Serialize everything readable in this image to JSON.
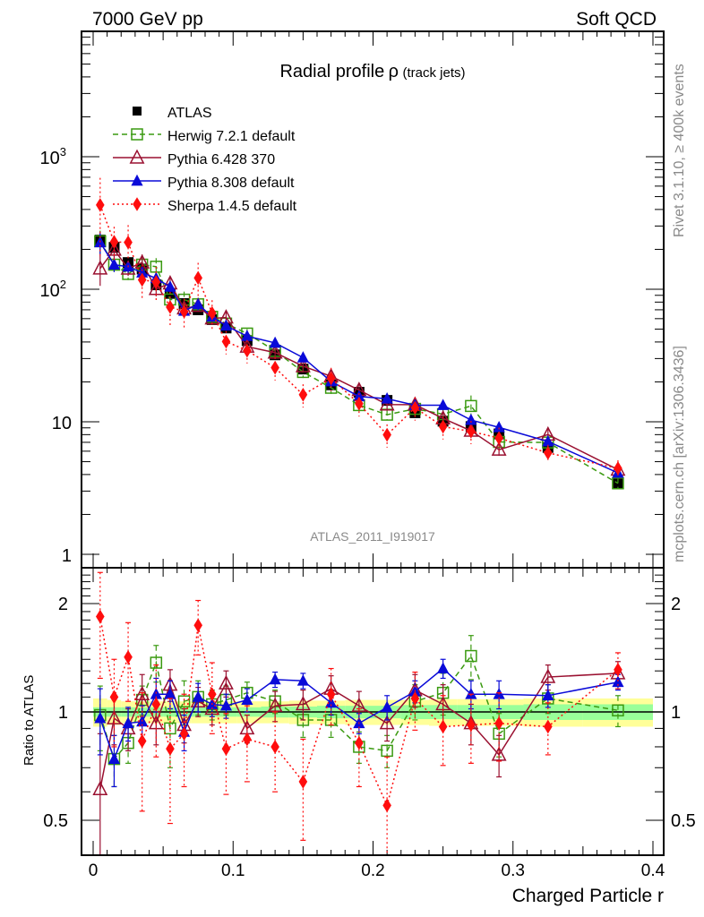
{
  "chart_data": {
    "type": "scatter",
    "header_left": "7000 GeV pp",
    "header_right": "Soft QCD",
    "title": "Radial profile",
    "title_symbol": "ρ",
    "title_suffix": "(track jets)",
    "analysis_id": "ATLAS_2011_I919017",
    "side_label_top": "Rivet 3.1.10, ≥ 400k events",
    "side_label_bottom": "mcplots.cern.ch [arXiv:1306.3436]",
    "xlabel": "Charged Particle r",
    "ylabel_ratio": "Ratio to ATLAS",
    "xlim": [
      -0.01,
      0.4
    ],
    "ylim_main": [
      0.8,
      8000
    ],
    "ylim_ratio": [
      0.4,
      2.45
    ],
    "yscale_main": "log",
    "yscale_ratio": "log",
    "legend_position": "top-left",
    "x_ticks": [
      "0",
      "0.1",
      "0.2",
      "0.3",
      "0.4"
    ],
    "y_ticks_main": [
      "1",
      "10",
      "10^2",
      "10^3"
    ],
    "y_ticks_ratio": [
      "0.5",
      "1",
      "2"
    ],
    "x": [
      0.005,
      0.015,
      0.025,
      0.035,
      0.045,
      0.055,
      0.065,
      0.075,
      0.085,
      0.095,
      0.11,
      0.13,
      0.15,
      0.17,
      0.19,
      0.21,
      0.23,
      0.25,
      0.27,
      0.29,
      0.325,
      0.375
    ],
    "reference": {
      "name": "ATLAS",
      "color": "#000000",
      "marker": "filled-square",
      "values": [
        235,
        207,
        159,
        142,
        108,
        93,
        78,
        70,
        59,
        51,
        41,
        32,
        25,
        19,
        16.7,
        14.5,
        11.7,
        10.1,
        9.2,
        8.1,
        6.4,
        3.4
      ],
      "band_inner": [
        0.03,
        0.03,
        0.03,
        0.03,
        0.03,
        0.03,
        0.03,
        0.03,
        0.03,
        0.03,
        0.03,
        0.035,
        0.035,
        0.04,
        0.04,
        0.04,
        0.045,
        0.045,
        0.045,
        0.045,
        0.05,
        0.05
      ],
      "band_outer": [
        0.09,
        0.08,
        0.07,
        0.07,
        0.07,
        0.07,
        0.07,
        0.07,
        0.07,
        0.07,
        0.07,
        0.07,
        0.075,
        0.075,
        0.08,
        0.08,
        0.08,
        0.085,
        0.085,
        0.085,
        0.09,
        0.09
      ]
    },
    "series": [
      {
        "name": "Herwig 7.2.1 default",
        "color": "#3a9a10",
        "line": "dashed",
        "marker": "open-square",
        "ratio": [
          0.98,
          0.74,
          0.82,
          1.08,
          1.37,
          0.9,
          1.07,
          1.1,
          1.05,
          1.08,
          1.13,
          1.07,
          0.95,
          0.95,
          0.8,
          0.78,
          1.07,
          1.13,
          1.43,
          0.87,
          1.09,
          1.01
        ],
        "ratio_err": [
          0.2,
          0.12,
          0.1,
          0.1,
          0.16,
          0.2,
          0.15,
          0.12,
          0.1,
          0.1,
          0.08,
          0.08,
          0.1,
          0.1,
          0.08,
          0.08,
          0.12,
          0.15,
          0.2,
          0.12,
          0.1,
          0.1
        ]
      },
      {
        "name": "Pythia 6.428 370",
        "color": "#9a1030",
        "line": "solid",
        "marker": "open-triangle",
        "ratio": [
          0.61,
          0.96,
          0.9,
          1.12,
          0.93,
          1.19,
          0.92,
          1.07,
          1.02,
          1.2,
          0.9,
          1.04,
          1.05,
          1.16,
          1.04,
          0.93,
          1.15,
          1.05,
          0.93,
          0.76,
          1.25,
          1.28
        ],
        "ratio_err": [
          0.26,
          0.15,
          0.12,
          0.15,
          0.12,
          0.12,
          0.1,
          0.1,
          0.1,
          0.1,
          0.08,
          0.1,
          0.1,
          0.1,
          0.1,
          0.1,
          0.12,
          0.14,
          0.12,
          0.1,
          0.1,
          0.1
        ]
      },
      {
        "name": "Pythia 8.308 default",
        "color": "#0a0ad8",
        "line": "solid",
        "marker": "filled-triangle",
        "ratio": [
          0.96,
          0.74,
          0.93,
          0.94,
          1.12,
          1.12,
          0.88,
          1.1,
          1.05,
          1.04,
          1.08,
          1.23,
          1.22,
          1.06,
          0.93,
          1.03,
          1.14,
          1.32,
          1.12,
          1.12,
          1.11,
          1.21
        ],
        "ratio_err": [
          0.2,
          0.12,
          0.1,
          0.1,
          0.12,
          0.1,
          0.1,
          0.1,
          0.08,
          0.08,
          0.08,
          0.06,
          0.06,
          0.08,
          0.06,
          0.08,
          0.08,
          0.08,
          0.1,
          0.1,
          0.08,
          0.06
        ]
      },
      {
        "name": "Sherpa 1.4.5 default",
        "color": "#ff0d0d",
        "line": "dotted",
        "marker": "filled-diamond",
        "ratio": [
          1.84,
          1.1,
          1.42,
          0.83,
          1.05,
          0.79,
          0.87,
          1.74,
          1.12,
          0.79,
          0.84,
          0.8,
          0.64,
          1.12,
          0.82,
          0.55,
          1.09,
          0.91,
          0.92,
          0.93,
          0.91,
          1.31
        ],
        "ratio_err": [
          0.6,
          0.3,
          0.35,
          0.3,
          0.3,
          0.3,
          0.25,
          0.3,
          0.25,
          0.2,
          0.2,
          0.2,
          0.2,
          0.2,
          0.2,
          0.2,
          0.2,
          0.2,
          0.2,
          0.2,
          0.15,
          0.15
        ]
      }
    ]
  }
}
